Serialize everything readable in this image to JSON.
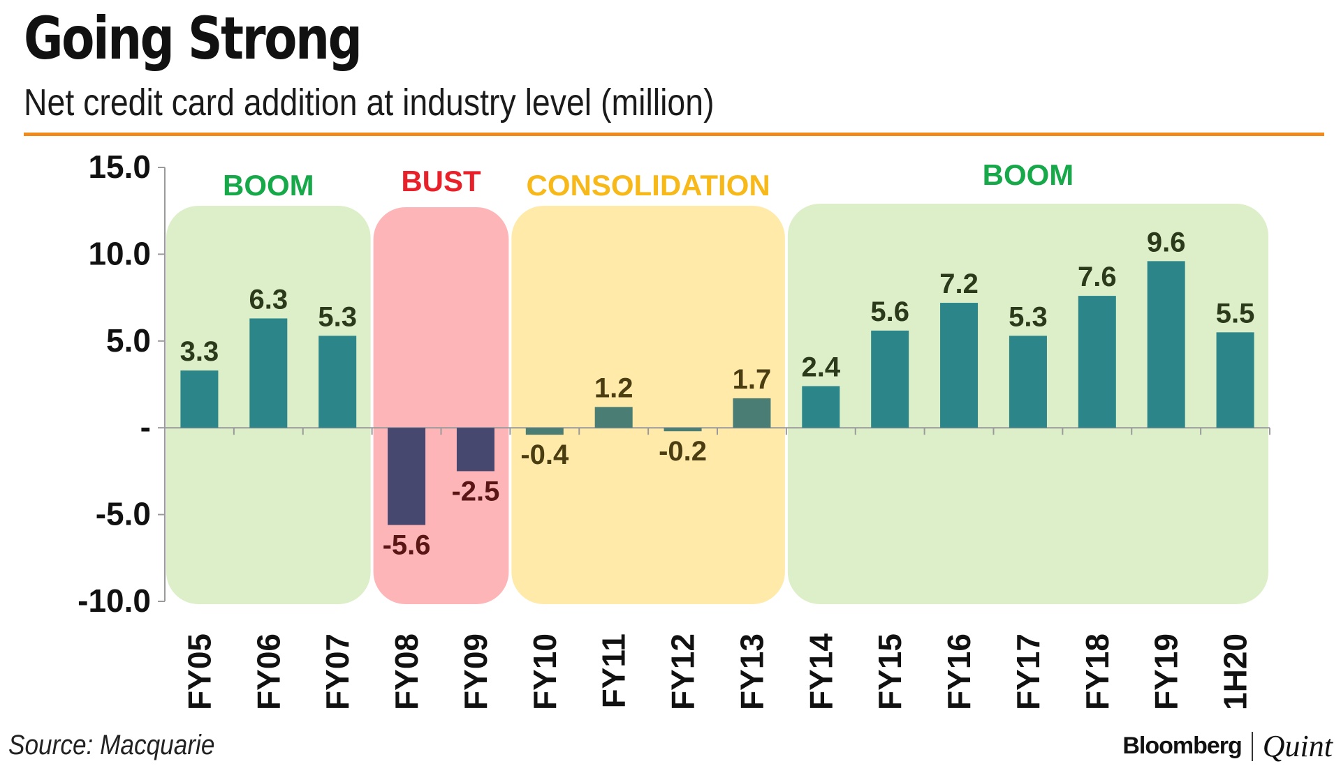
{
  "chart_data": {
    "type": "bar",
    "title": "Going Strong",
    "subtitle": "Net credit card addition at industry level (million)",
    "xlabel": "",
    "ylabel": "",
    "ylim": [
      -10,
      15
    ],
    "yticks": [
      15,
      10,
      5,
      0,
      -5,
      -10
    ],
    "ytick_labels": [
      "15.0",
      "10.0",
      "5.0",
      "-",
      "-5.0",
      "-10.0"
    ],
    "categories": [
      "FY05",
      "FY06",
      "FY07",
      "FY08",
      "FY09",
      "FY10",
      "FY11",
      "FY12",
      "FY13",
      "FY14",
      "FY15",
      "FY16",
      "FY17",
      "FY18",
      "FY19",
      "1H20"
    ],
    "values": [
      3.3,
      6.3,
      5.3,
      -5.6,
      -2.5,
      -0.4,
      1.2,
      -0.2,
      1.7,
      2.4,
      5.6,
      7.2,
      5.3,
      7.6,
      9.6,
      5.5
    ],
    "value_labels": [
      "3.3",
      "6.3",
      "5.3",
      "-5.6",
      "-2.5",
      "-0.4",
      "1.2",
      "-0.2",
      "1.7",
      "2.4",
      "5.6",
      "7.2",
      "5.3",
      "7.6",
      "9.6",
      "5.5"
    ],
    "phases": [
      {
        "label": "BOOM",
        "from": 0,
        "to": 2,
        "fill": "#ddefc9",
        "text_color": "#17a84a",
        "bar_color": "#2b8589",
        "value_color": "#2c3a1c"
      },
      {
        "label": "BUST",
        "from": 3,
        "to": 4,
        "fill": "#fdb5b7",
        "text_color": "#e8202a",
        "bar_color": "#474870",
        "value_color": "#5a1515"
      },
      {
        "label": "CONSOLIDATION",
        "from": 5,
        "to": 8,
        "fill": "#ffeaa9",
        "text_color": "#f7b81a",
        "bar_color": "#4a7d73",
        "value_color": "#4a3d12"
      },
      {
        "label": "BOOM",
        "from": 9,
        "to": 15,
        "fill": "#ddefc9",
        "text_color": "#17a84a",
        "bar_color": "#2b8589",
        "value_color": "#2c3a1c"
      }
    ]
  },
  "footer": {
    "source": "Source: Macquarie",
    "brand_primary": "Bloomberg",
    "brand_secondary": "Quint"
  }
}
